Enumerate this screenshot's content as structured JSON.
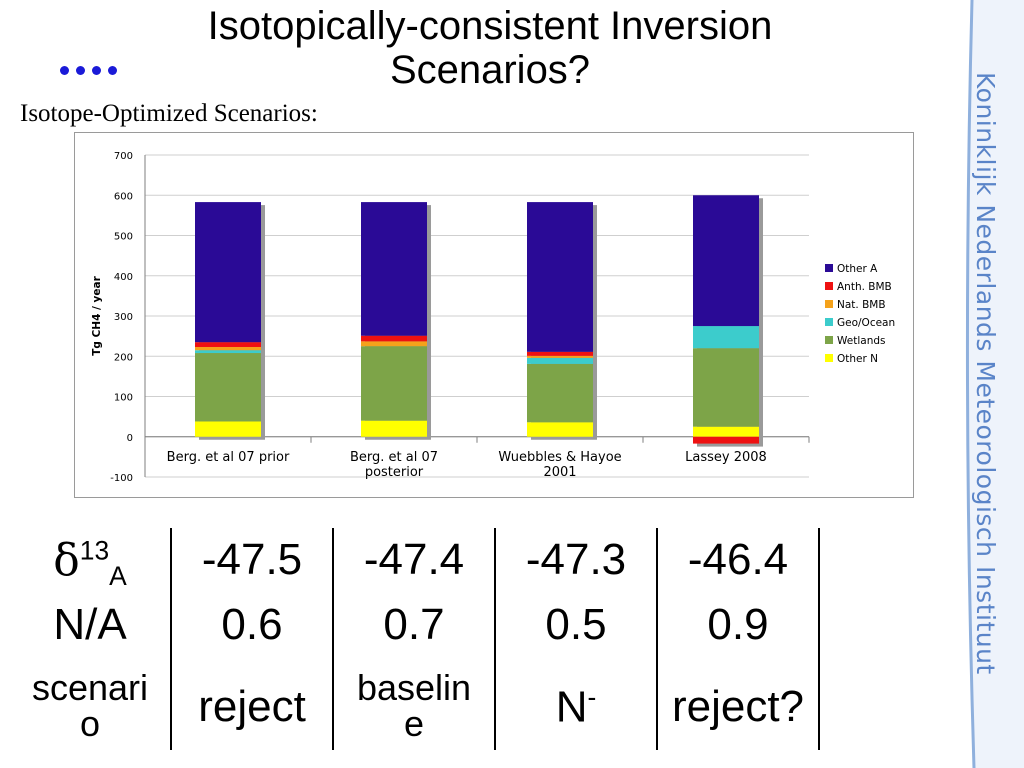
{
  "title": "Isotopically-consistent Inversion Scenarios?",
  "subtitle": "Isotope-Optimized Scenarios:",
  "brand": "Koninklijk Nederlands Meteorologisch Instituut",
  "colors": {
    "Other A": "#2a0a96",
    "Anth.  BMB": "#ee1111",
    "Nat. BMB": "#f5a21b",
    "Geo/Ocean": "#3ccccc",
    "Wetlands": "#7da448",
    "Other N": "#ffff00",
    "accent": "#1a1ad8",
    "brand": "#5a84c8"
  },
  "chart_data": {
    "type": "bar",
    "stacked": true,
    "ylabel": "Tg CH4 / year",
    "ylim": [
      -100,
      700
    ],
    "yticks": [
      -100,
      0,
      100,
      200,
      300,
      400,
      500,
      600,
      700
    ],
    "grid": true,
    "legend_position": "right",
    "categories": [
      "Berg. et al 07 prior",
      "Berg. et al 07 posterior",
      "Wuebbles & Hayoe 2001",
      "Lassey 2008"
    ],
    "category_lines": [
      [
        "Berg. et al 07 prior"
      ],
      [
        "Berg. et al 07",
        "posterior"
      ],
      [
        "Wuebbles & Hayoe",
        "2001"
      ],
      [
        "Lassey 2008"
      ]
    ],
    "series": [
      {
        "name": "Other N",
        "values": [
          38,
          40,
          36,
          25
        ]
      },
      {
        "name": "Wetlands",
        "values": [
          170,
          185,
          145,
          195
        ]
      },
      {
        "name": "Geo/Ocean",
        "values": [
          7,
          0,
          15,
          55
        ]
      },
      {
        "name": "Nat. BMB",
        "values": [
          8,
          12,
          5,
          0
        ]
      },
      {
        "name": "Anth.  BMB",
        "values": [
          12,
          14,
          10,
          -17
        ]
      },
      {
        "name": "Other A",
        "values": [
          348,
          332,
          372,
          325
        ]
      }
    ],
    "legend_order": [
      "Other A",
      "Anth.  BMB",
      "Nat. BMB",
      "Geo/Ocean",
      "Wetlands",
      "Other N"
    ]
  },
  "table": {
    "row1": {
      "label_main": "δ",
      "label_sup": "13",
      "label_sub": "A",
      "values": [
        "-47.5",
        "-47.4",
        "-47.3",
        "-46.4"
      ]
    },
    "row2": {
      "label": "N/A",
      "values": [
        "0.6",
        "0.7",
        "0.5",
        "0.9"
      ]
    },
    "row3": {
      "label_lines": [
        "scenari",
        "o"
      ],
      "c1": "reject",
      "c2_lines": [
        "baselin",
        "e"
      ],
      "c3_main": "N",
      "c3_sup": "-",
      "c4": "reject?"
    }
  }
}
